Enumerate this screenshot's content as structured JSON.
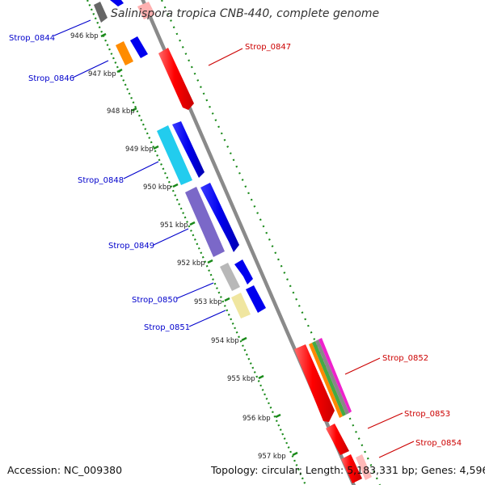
{
  "title": "Salinispora tropica CNB-440, complete genome",
  "footer": {
    "accession": "Accession: NC_009380",
    "summary": "Topology: circular; Length: 5,183,331 bp; Genes: 4,596"
  },
  "kbp_labels": [
    "946 kbp",
    "947 kbp",
    "948 kbp",
    "949 kbp",
    "950 kbp",
    "951 kbp",
    "952 kbp",
    "953 kbp",
    "954 kbp",
    "955 kbp",
    "956 kbp",
    "957 kbp"
  ],
  "gene_labels": {
    "strop_0844": "Strop_0844",
    "strop_0846": "Strop_0846",
    "strop_0847": "Strop_0847",
    "strop_0848": "Strop_0848",
    "strop_0849": "Strop_0849",
    "strop_0850": "Strop_0850",
    "strop_0851": "Strop_0851",
    "strop_0852": "Strop_0852",
    "strop_0853": "Strop_0853",
    "strop_0854": "Strop_0854"
  },
  "colors": {
    "forward_label": "#0000cc",
    "reverse_label": "#cc0000",
    "backbone": "#8a8a8a",
    "tick": "#1a8a1a",
    "forward_cds": "#0000ee",
    "reverse_cds": "#ee0000"
  }
}
